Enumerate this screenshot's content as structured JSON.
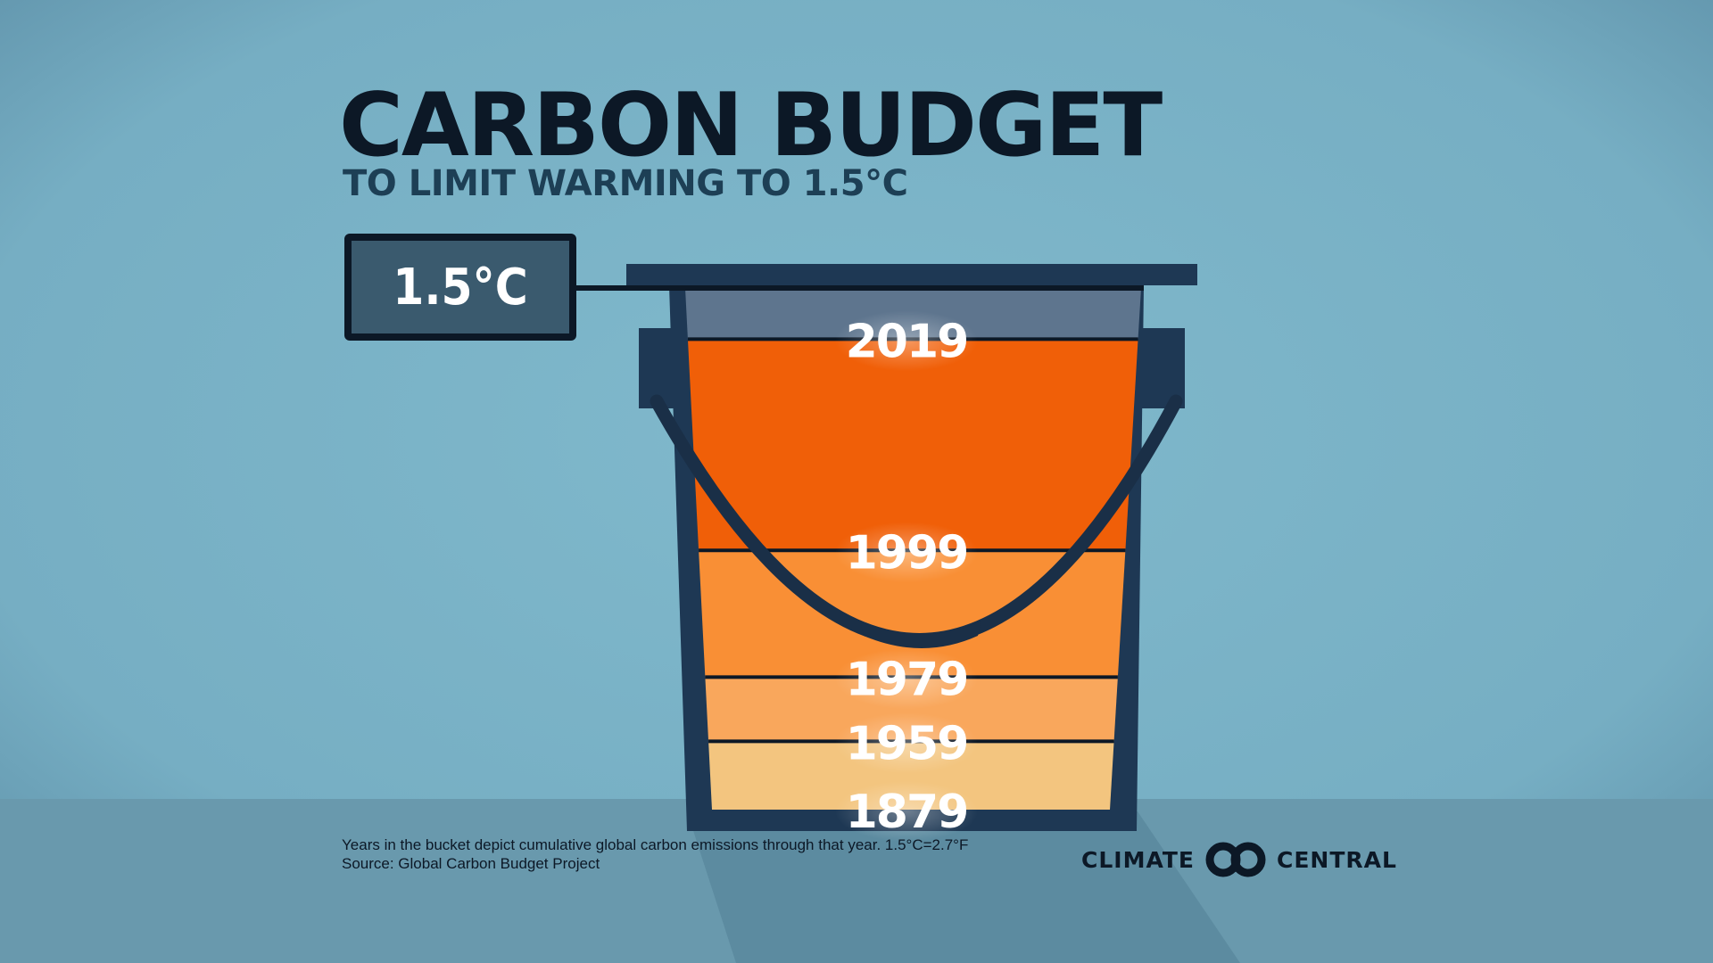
{
  "title": "CARBON BUDGET",
  "subtitle": "TO LIMIT WARMING TO 1.5°C",
  "limit_label": "1.5°C",
  "footnote": {
    "line1": "Years in the bucket depict cumulative global carbon emissions through that year. 1.5°C=2.7°F",
    "line2": "Source: Global Carbon Budget Project"
  },
  "brand": {
    "left": "CLIMATE",
    "right": "CENTRAL",
    "logo_icon": "double-ring-logo-icon"
  },
  "colors": {
    "background": "#7db4c8",
    "bucket": "#1e3854",
    "remaining_budget": "#5e758e",
    "band_2019": "#f05f08",
    "band_1999": "#f98f35",
    "band_1979": "#f9a75c",
    "band_1959": "#f3c57f",
    "text_dark": "#0c1826"
  },
  "chart_data": {
    "type": "area",
    "title": "CARBON BUDGET",
    "subtitle": "TO LIMIT WARMING TO 1.5°C",
    "budget_label": "1.5°C",
    "years": [
      "1879",
      "1959",
      "1979",
      "1999",
      "2019"
    ],
    "bucket_fill_fractions": [
      0.0,
      0.131,
      0.254,
      0.497,
      0.902
    ],
    "budget_fraction": 1.0
  }
}
